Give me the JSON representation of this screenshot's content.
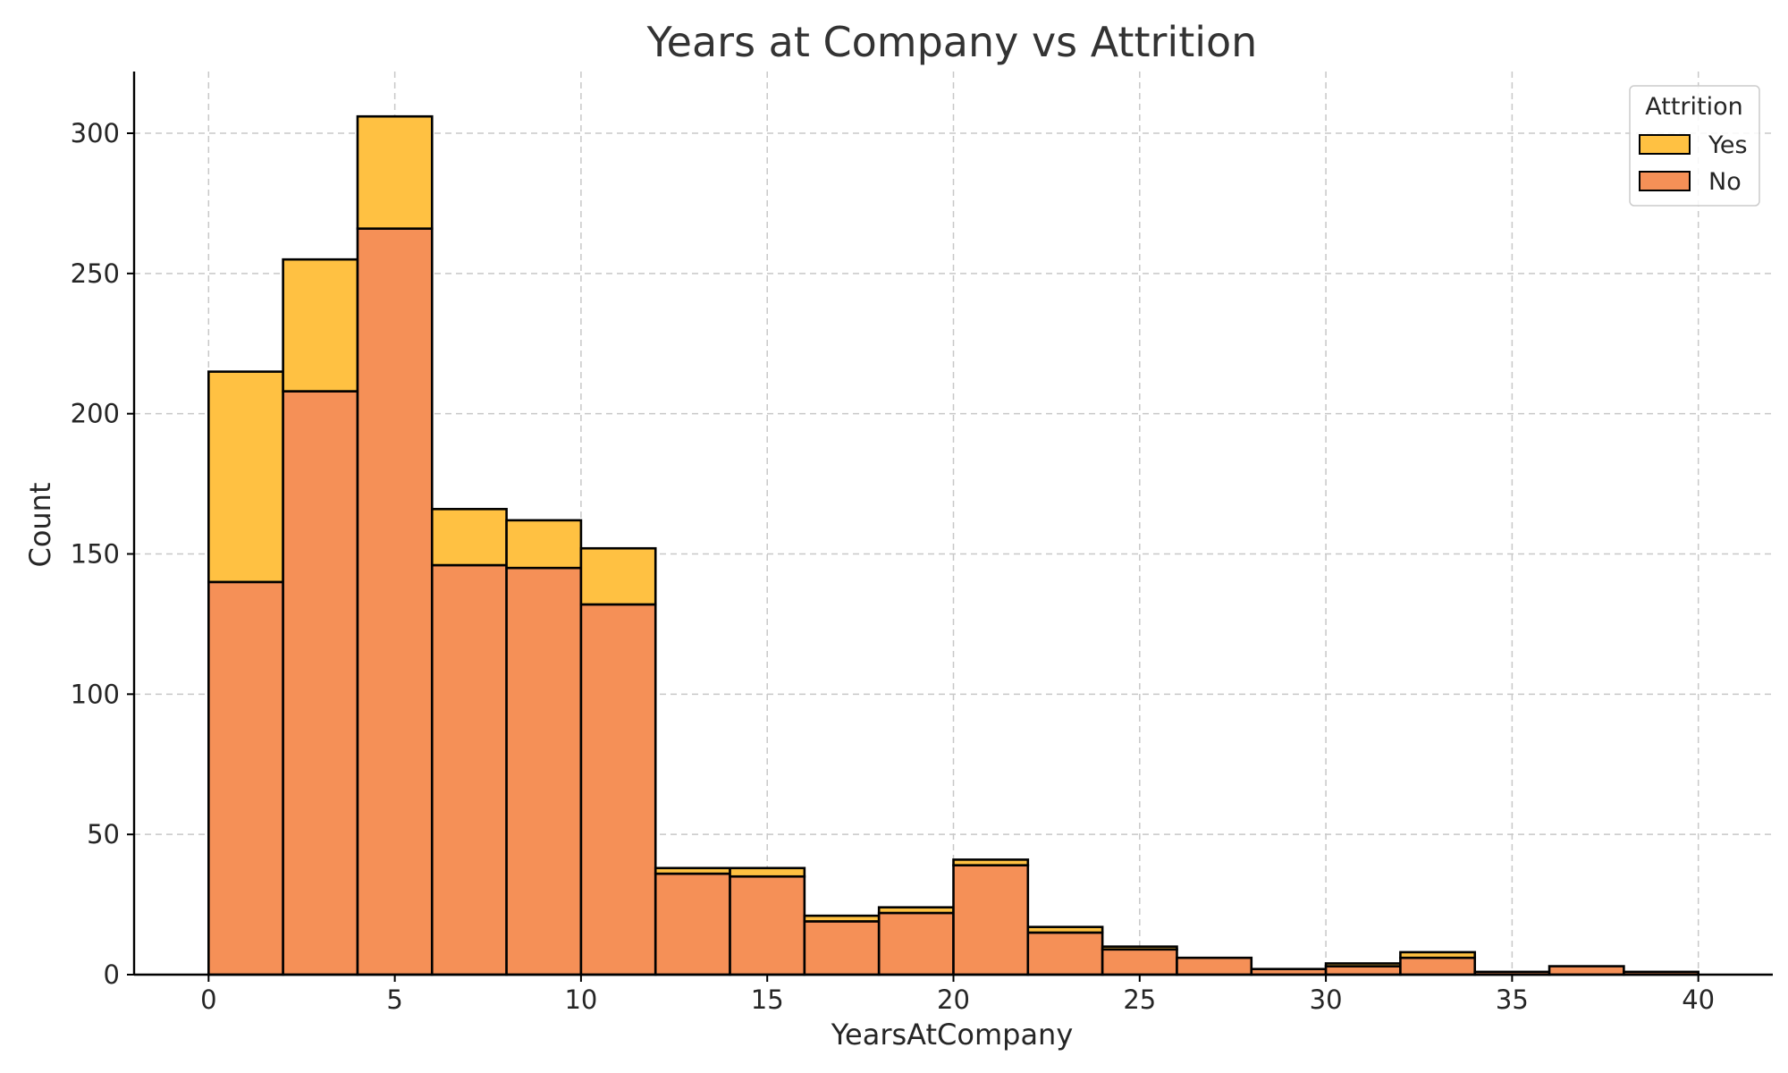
{
  "chart_data": {
    "type": "bar",
    "stacked": true,
    "title": "Years at Company vs Attrition",
    "xlabel": "YearsAtCompany",
    "ylabel": "Count",
    "xlim": [
      -2,
      42
    ],
    "ylim": [
      0,
      322
    ],
    "xticks": [
      0,
      5,
      10,
      15,
      20,
      25,
      30,
      35,
      40
    ],
    "yticks": [
      0,
      50,
      100,
      150,
      200,
      250,
      300
    ],
    "grid": true,
    "bin_edges": [
      0,
      2,
      4,
      6,
      8,
      10,
      12,
      14,
      16,
      18,
      20,
      22,
      24,
      26,
      28,
      30,
      32,
      34,
      36,
      38,
      40
    ],
    "legend": {
      "title": "Attrition",
      "position": "top-right"
    },
    "series": [
      {
        "name": "No",
        "color": "#f59057",
        "values": [
          140,
          208,
          266,
          146,
          145,
          132,
          36,
          35,
          19,
          22,
          39,
          15,
          9,
          6,
          2,
          3,
          6,
          1,
          3,
          1
        ]
      },
      {
        "name": "Yes",
        "color": "#ffc142",
        "values": [
          75,
          47,
          40,
          20,
          17,
          20,
          2,
          3,
          2,
          2,
          2,
          2,
          1,
          0,
          0,
          1,
          2,
          0,
          0,
          0
        ]
      }
    ]
  }
}
